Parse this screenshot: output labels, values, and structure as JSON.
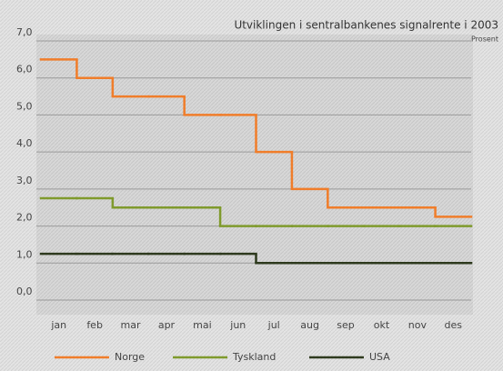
{
  "chart_data": {
    "type": "step",
    "title": "Utviklingen i sentralbankenes signalrente i 2003",
    "subtitle": "Prosent",
    "categories": [
      "jan",
      "feb",
      "mar",
      "apr",
      "mai",
      "jun",
      "jul",
      "aug",
      "sep",
      "okt",
      "nov",
      "des"
    ],
    "series": [
      {
        "name": "Norge",
        "color": "#f07d2a",
        "values": [
          6.5,
          6.0,
          5.5,
          5.5,
          5.0,
          5.0,
          4.0,
          3.0,
          2.5,
          2.5,
          2.5,
          2.25
        ]
      },
      {
        "name": "Tyskland",
        "color": "#7f9a2c",
        "values": [
          2.75,
          2.75,
          2.5,
          2.5,
          2.5,
          2.0,
          2.0,
          2.0,
          2.0,
          2.0,
          2.0,
          2.0
        ]
      },
      {
        "name": "USA",
        "color": "#2e3a1e",
        "values": [
          1.25,
          1.25,
          1.25,
          1.25,
          1.25,
          1.25,
          1.0,
          1.0,
          1.0,
          1.0,
          1.0,
          1.0
        ]
      }
    ],
    "ylim": [
      0,
      7
    ],
    "yticks": [
      {
        "value": 0,
        "label": "0,0"
      },
      {
        "value": 1,
        "label": "1,0"
      },
      {
        "value": 2,
        "label": "2,0"
      },
      {
        "value": 3,
        "label": "3,0"
      },
      {
        "value": 4,
        "label": "4,0"
      },
      {
        "value": 5,
        "label": "5,0"
      },
      {
        "value": 6,
        "label": "6,0"
      },
      {
        "value": 7,
        "label": "7,0"
      }
    ],
    "grid": true,
    "legend": "bottom"
  }
}
